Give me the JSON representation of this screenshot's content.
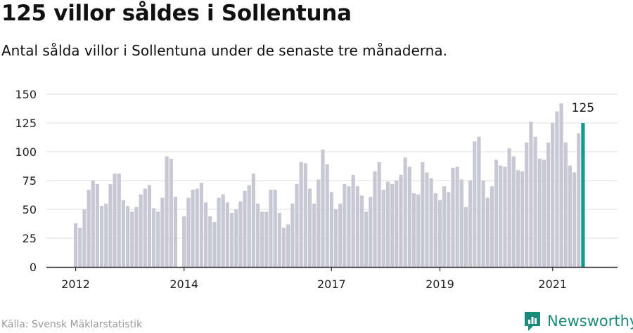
{
  "title": "125 villor såldes i Sollentuna",
  "subtitle": "Antal sålda villor i Sollentuna under de senaste tre månaderna.",
  "source": "Källa: Svensk Mäklarstatistik",
  "brand": {
    "name": "Newsworthy",
    "icon": "newsworthy-logo-icon"
  },
  "colors": {
    "bar": "#c8c8d4",
    "highlight": "#0f9b8e",
    "grid": "#dcdcdc",
    "axis": "#333333",
    "brand": "#1a8a7a"
  },
  "chart_data": {
    "type": "bar",
    "ylim": [
      0,
      150
    ],
    "yticks": [
      0,
      25,
      50,
      75,
      100,
      125,
      150
    ],
    "xtick_labels": [
      "2012",
      "2014",
      "2017",
      "2019",
      "2021"
    ],
    "xtick_index": [
      0,
      25,
      59,
      84,
      110
    ],
    "highlight_label": "125",
    "grid": true,
    "values": [
      38,
      34,
      50,
      67,
      75,
      72,
      53,
      55,
      72,
      81,
      81,
      58,
      53,
      48,
      52,
      63,
      68,
      71,
      51,
      48,
      60,
      96,
      94,
      61,
      null,
      44,
      60,
      67,
      68,
      73,
      56,
      44,
      39,
      60,
      63,
      56,
      47,
      50,
      57,
      66,
      71,
      81,
      55,
      48,
      48,
      67,
      67,
      47,
      34,
      37,
      55,
      72,
      91,
      90,
      68,
      55,
      76,
      102,
      89,
      65,
      50,
      55,
      72,
      70,
      80,
      70,
      62,
      48,
      61,
      83,
      91,
      67,
      74,
      72,
      75,
      80,
      95,
      87,
      64,
      63,
      91,
      82,
      77,
      64,
      58,
      70,
      65,
      86,
      87,
      76,
      52,
      75,
      109,
      113,
      75,
      60,
      70,
      93,
      88,
      87,
      103,
      96,
      84,
      83,
      108,
      126,
      113,
      94,
      93,
      108,
      125,
      135,
      142,
      108,
      88,
      82,
      116,
      125
    ]
  }
}
